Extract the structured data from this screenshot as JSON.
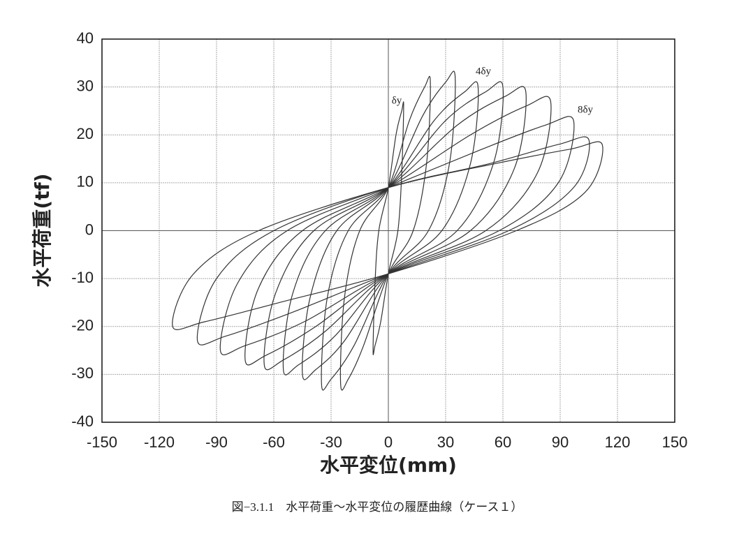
{
  "chart_data": {
    "type": "line",
    "caption": "図−3.1.1　水平荷重〜水平変位の履歴曲線（ケース１）",
    "x_label": "水平変位(mm)",
    "y_label": "水平荷重(tf)",
    "annotations": [
      "δy",
      "4δy",
      "8δy"
    ],
    "xlim": [
      -150,
      150
    ],
    "xticks": [
      -150,
      -120,
      -90,
      -60,
      -30,
      0,
      30,
      60,
      90,
      120,
      150
    ],
    "ylim": [
      -40,
      40
    ],
    "yticks": [
      -40,
      -30,
      -20,
      -10,
      0,
      10,
      20,
      30,
      40
    ],
    "grid": true,
    "series": [
      {
        "color": "#333333",
        "x": [
          -8,
          -7,
          -5,
          0,
          4,
          7,
          8,
          7,
          5,
          0,
          -4,
          -7
        ],
        "values": [
          -25,
          -11,
          0,
          9,
          20,
          25,
          26,
          12,
          0,
          -9,
          -19,
          -24
        ]
      },
      {
        "color": "#333333",
        "x": [
          -25,
          -23,
          -15,
          0,
          11,
          19,
          22,
          20,
          13,
          0,
          -13,
          -21
        ],
        "values": [
          -32,
          -14,
          0,
          9,
          23,
          30,
          31,
          14,
          0,
          -9,
          -24,
          -31
        ]
      },
      {
        "color": "#333333",
        "x": [
          -35,
          -32,
          -21,
          0,
          18,
          30,
          35,
          32,
          21,
          0,
          -18,
          -30
        ],
        "values": [
          -32,
          -14,
          0,
          9,
          24,
          31,
          32,
          14,
          0,
          -9,
          -24,
          -31
        ]
      },
      {
        "color": "#333333",
        "x": [
          -45,
          -41,
          -27,
          0,
          24,
          40,
          47,
          43,
          28,
          0,
          -23,
          -38
        ],
        "values": [
          -30,
          -14,
          0,
          9,
          23,
          29,
          30,
          14,
          0,
          -9,
          -23,
          -29
        ]
      },
      {
        "color": "#333333",
        "x": [
          -55,
          -50,
          -33,
          0,
          30,
          51,
          60,
          55,
          36,
          0,
          -28,
          -47
        ],
        "values": [
          -29,
          -13,
          0,
          9,
          23,
          29,
          30,
          14,
          0,
          -9,
          -22,
          -28
        ]
      },
      {
        "color": "#333333",
        "x": [
          -65,
          -59,
          -39,
          0,
          36,
          61,
          72,
          66,
          43,
          0,
          -33,
          -55
        ],
        "values": [
          -28,
          -13,
          0,
          9,
          22,
          28,
          29,
          13,
          0,
          -9,
          -21,
          -27
        ]
      },
      {
        "color": "#333333",
        "x": [
          -75,
          -68,
          -45,
          0,
          43,
          72,
          85,
          78,
          51,
          0,
          -38,
          -64
        ],
        "values": [
          -27,
          -12,
          0,
          9,
          20,
          26,
          27,
          12,
          0,
          -9,
          -20,
          -26
        ]
      },
      {
        "color": "#333333",
        "x": [
          -88,
          -79,
          -53,
          0,
          49,
          82,
          97,
          89,
          58,
          0,
          -44,
          -75
        ],
        "values": [
          -25,
          -11,
          0,
          9,
          17,
          22,
          23,
          10,
          0,
          -9,
          -19,
          -24
        ]
      },
      {
        "color": "#333333",
        "x": [
          -100,
          -90,
          -60,
          0,
          53,
          89,
          105,
          97,
          63,
          0,
          -50,
          -85
        ],
        "values": [
          -23,
          -10,
          0,
          9,
          14,
          18,
          19,
          9,
          0,
          -9,
          -17,
          -22
        ]
      },
      {
        "color": "#333333",
        "x": [
          -113,
          -102,
          -68,
          0,
          56,
          95,
          112,
          103,
          67,
          0,
          -57,
          -96
        ],
        "values": [
          -20,
          -9,
          0,
          9,
          14,
          17,
          18,
          8,
          0,
          -9,
          -15,
          -19
        ]
      }
    ]
  }
}
